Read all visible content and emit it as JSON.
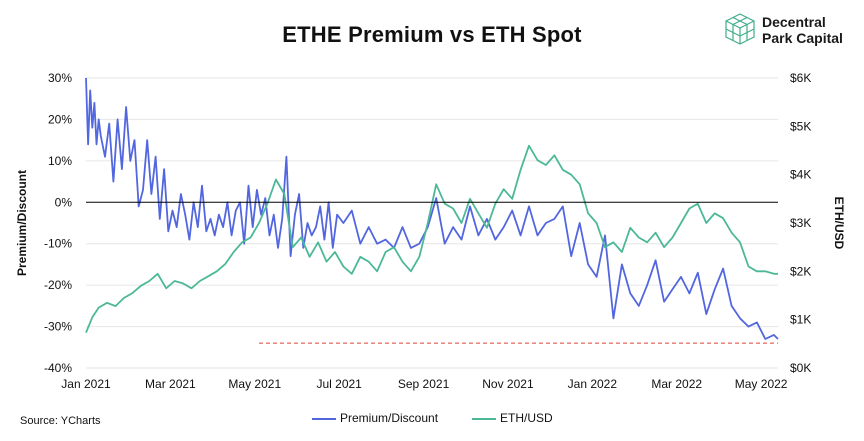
{
  "brand": {
    "line1": "Decentral",
    "line2": "Park Capital",
    "icon": "cube-grid-icon"
  },
  "source": "Source: YCharts",
  "colors": {
    "premium": "#5266e0",
    "eth": "#4cb898",
    "reference": "#e0403a",
    "zero": "#000000",
    "grid": "#e6e6e6"
  },
  "chart_data": {
    "type": "line",
    "title": "ETHE Premium vs ETH Spot",
    "ylabel_left": "Premium/Discount",
    "ylabel_right": "ETH/USD",
    "x_ticks": [
      "Jan 2021",
      "Mar 2021",
      "May 2021",
      "Jul 2021",
      "Sep 2021",
      "Nov 2021",
      "Jan 2022",
      "Mar 2022",
      "May 2022"
    ],
    "y_left_ticks": [
      "30%",
      "20%",
      "10%",
      "0%",
      "-10%",
      "-20%",
      "-30%",
      "-40%"
    ],
    "y_right_ticks": [
      "$6K",
      "$5K",
      "$4K",
      "$3K",
      "$2K",
      "$1K",
      "$0K"
    ],
    "y_left_range": [
      -40,
      30
    ],
    "y_right_range": [
      0,
      6000
    ],
    "x_range_months": [
      0,
      16.4
    ],
    "grid": "horizontal",
    "legend_position": "bottom",
    "reference_line": {
      "value": -34,
      "x_start": 4.1,
      "x_end": 16.4
    },
    "series": [
      {
        "name": "Premium/Discount",
        "axis": "left",
        "x": [
          0,
          0.05,
          0.1,
          0.15,
          0.2,
          0.25,
          0.3,
          0.35,
          0.45,
          0.55,
          0.65,
          0.75,
          0.85,
          0.95,
          1.05,
          1.15,
          1.25,
          1.35,
          1.45,
          1.55,
          1.65,
          1.75,
          1.85,
          1.95,
          2.05,
          2.15,
          2.25,
          2.35,
          2.45,
          2.55,
          2.65,
          2.75,
          2.85,
          2.95,
          3.05,
          3.15,
          3.25,
          3.35,
          3.45,
          3.55,
          3.65,
          3.75,
          3.85,
          3.95,
          4.05,
          4.15,
          4.25,
          4.35,
          4.45,
          4.55,
          4.65,
          4.75,
          4.85,
          4.95,
          5.05,
          5.15,
          5.25,
          5.35,
          5.45,
          5.55,
          5.65,
          5.75,
          5.85,
          5.95,
          6.1,
          6.3,
          6.5,
          6.7,
          6.9,
          7.1,
          7.3,
          7.5,
          7.7,
          7.9,
          8.1,
          8.3,
          8.5,
          8.7,
          8.9,
          9.1,
          9.3,
          9.5,
          9.7,
          9.9,
          10.1,
          10.3,
          10.5,
          10.7,
          10.9,
          11.1,
          11.3,
          11.5,
          11.7,
          11.9,
          12.1,
          12.3,
          12.5,
          12.7,
          12.9,
          13.1,
          13.3,
          13.5,
          13.7,
          13.9,
          14.1,
          14.3,
          14.5,
          14.7,
          14.9,
          15.1,
          15.3,
          15.5,
          15.7,
          15.9,
          16.1,
          16.3,
          16.4
        ],
        "values": [
          30,
          14,
          27,
          18,
          24,
          14,
          20,
          16,
          11,
          19,
          5,
          20,
          8,
          23,
          10,
          15,
          -1,
          3,
          15,
          2,
          11,
          -4,
          8,
          -7,
          -2,
          -6,
          2,
          -3,
          -9,
          0,
          -6,
          4,
          -7,
          -4,
          -8,
          -3,
          -6,
          0,
          -8,
          -2,
          0,
          -10,
          4,
          -6,
          3,
          -3,
          1,
          -8,
          -3,
          -11,
          -4,
          11,
          -13,
          -3,
          2,
          -11,
          -5,
          -8,
          -6,
          -1,
          -9,
          0,
          -11,
          -3,
          -5,
          -2,
          -10,
          -6,
          -10,
          -9,
          -11,
          -6,
          -11,
          -10,
          -6,
          1,
          -10,
          -6,
          -9,
          -1,
          -8,
          -4,
          -9,
          -6,
          -2,
          -8,
          -1,
          -8,
          -5,
          -4,
          -1,
          -13,
          -5,
          -15,
          -18,
          -8,
          -28,
          -15,
          -22,
          -25,
          -20,
          -14,
          -24,
          -21,
          -18,
          -22,
          -17,
          -27,
          -21,
          -16,
          -25,
          -28,
          -30,
          -29,
          -33,
          -32,
          -33
        ]
      },
      {
        "name": "ETH/USD",
        "axis": "right",
        "x": [
          0,
          0.15,
          0.3,
          0.5,
          0.7,
          0.9,
          1.1,
          1.3,
          1.5,
          1.7,
          1.9,
          2.1,
          2.3,
          2.5,
          2.7,
          2.9,
          3.1,
          3.3,
          3.5,
          3.7,
          3.9,
          4.1,
          4.3,
          4.5,
          4.7,
          4.9,
          5.1,
          5.3,
          5.5,
          5.7,
          5.9,
          6.1,
          6.3,
          6.5,
          6.7,
          6.9,
          7.1,
          7.3,
          7.5,
          7.7,
          7.9,
          8.1,
          8.3,
          8.5,
          8.7,
          8.9,
          9.1,
          9.3,
          9.5,
          9.7,
          9.9,
          10.1,
          10.3,
          10.5,
          10.7,
          10.9,
          11.1,
          11.3,
          11.5,
          11.7,
          11.9,
          12.1,
          12.3,
          12.5,
          12.7,
          12.9,
          13.1,
          13.3,
          13.5,
          13.7,
          13.9,
          14.1,
          14.3,
          14.5,
          14.7,
          14.9,
          15.1,
          15.3,
          15.5,
          15.7,
          15.9,
          16.1,
          16.3,
          16.4
        ],
        "values": [
          730,
          1050,
          1250,
          1350,
          1280,
          1450,
          1550,
          1700,
          1800,
          1950,
          1650,
          1800,
          1750,
          1650,
          1800,
          1900,
          2000,
          2150,
          2400,
          2600,
          2700,
          3000,
          3400,
          3900,
          3600,
          2500,
          2700,
          2300,
          2600,
          2200,
          2400,
          2100,
          1950,
          2300,
          2200,
          2000,
          2400,
          2500,
          2200,
          2000,
          2300,
          3000,
          3800,
          3400,
          3300,
          3000,
          3500,
          3200,
          2900,
          3400,
          3700,
          3500,
          4100,
          4600,
          4300,
          4200,
          4400,
          4100,
          4000,
          3800,
          3200,
          3000,
          2500,
          2600,
          2400,
          2900,
          2700,
          2600,
          2800,
          2500,
          2700,
          3000,
          3300,
          3400,
          3000,
          3200,
          3100,
          2800,
          2600,
          2100,
          2000,
          2000,
          1950,
          1950
        ]
      }
    ]
  }
}
